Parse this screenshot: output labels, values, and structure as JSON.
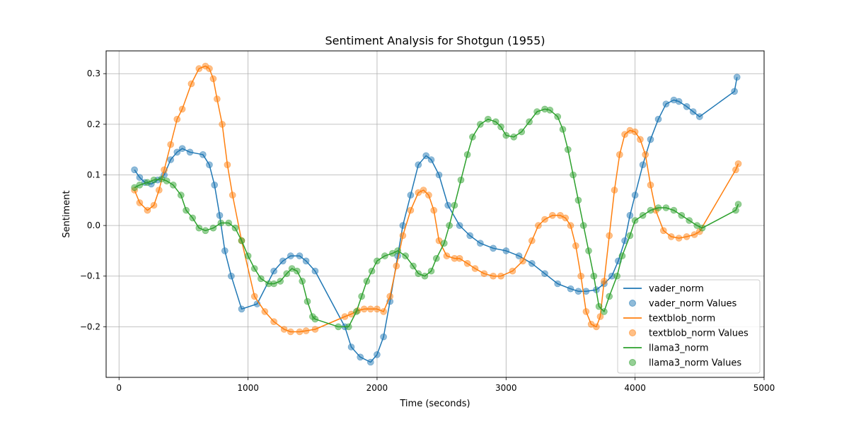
{
  "chart_data": {
    "type": "line",
    "title": "Sentiment Analysis for Shotgun (1955)",
    "xlabel": "Time (seconds)",
    "ylabel": "Sentiment",
    "xlim": [
      -100,
      5000
    ],
    "ylim": [
      -0.3,
      0.345
    ],
    "xticks": [
      0,
      1000,
      2000,
      3000,
      4000,
      5000
    ],
    "yticks": [
      -0.2,
      -0.1,
      0.0,
      0.1,
      0.2,
      0.3
    ],
    "xtick_labels": [
      "0",
      "1000",
      "2000",
      "3000",
      "4000",
      "5000"
    ],
    "ytick_labels": [
      "−0.2",
      "−0.1",
      "0.0",
      "0.1",
      "0.2",
      "0.3"
    ],
    "grid": true,
    "legend_position": "lower-right",
    "series": [
      {
        "name": "vader_norm",
        "values_label": "vader_norm Values",
        "color": "#1f77b4",
        "x": [
          120,
          160,
          200,
          250,
          300,
          350,
          400,
          450,
          490,
          550,
          650,
          700,
          740,
          780,
          820,
          870,
          950,
          1070,
          1200,
          1270,
          1330,
          1400,
          1450,
          1520,
          1750,
          1800,
          1870,
          1950,
          2000,
          2050,
          2100,
          2160,
          2200,
          2260,
          2320,
          2380,
          2420,
          2480,
          2550,
          2640,
          2720,
          2800,
          2900,
          3000,
          3100,
          3200,
          3300,
          3400,
          3500,
          3560,
          3620,
          3700,
          3760,
          3820,
          3870,
          3920,
          3960,
          4000,
          4060,
          4120,
          4180,
          4240,
          4300,
          4340,
          4400,
          4450,
          4500,
          4770,
          4790
        ],
        "y": [
          0.11,
          0.095,
          0.085,
          0.082,
          0.09,
          0.1,
          0.13,
          0.145,
          0.152,
          0.145,
          0.14,
          0.12,
          0.08,
          0.02,
          -0.05,
          -0.1,
          -0.165,
          -0.155,
          -0.09,
          -0.07,
          -0.06,
          -0.06,
          -0.07,
          -0.09,
          -0.2,
          -0.24,
          -0.26,
          -0.27,
          -0.255,
          -0.22,
          -0.15,
          -0.06,
          0.0,
          0.06,
          0.12,
          0.138,
          0.13,
          0.1,
          0.04,
          0.0,
          -0.02,
          -0.035,
          -0.045,
          -0.05,
          -0.06,
          -0.075,
          -0.095,
          -0.115,
          -0.125,
          -0.13,
          -0.13,
          -0.127,
          -0.115,
          -0.1,
          -0.07,
          -0.03,
          0.02,
          0.06,
          0.12,
          0.17,
          0.21,
          0.24,
          0.248,
          0.245,
          0.235,
          0.225,
          0.215,
          0.265,
          0.293
        ]
      },
      {
        "name": "textblob_norm",
        "values_label": "textblob_norm Values",
        "color": "#ff7f0e",
        "x": [
          120,
          160,
          220,
          270,
          310,
          350,
          400,
          450,
          490,
          560,
          620,
          670,
          700,
          730,
          760,
          800,
          840,
          880,
          950,
          1050,
          1130,
          1200,
          1280,
          1330,
          1400,
          1450,
          1520,
          1750,
          1800,
          1850,
          1900,
          1950,
          2000,
          2050,
          2100,
          2150,
          2200,
          2260,
          2320,
          2360,
          2400,
          2440,
          2480,
          2540,
          2600,
          2640,
          2700,
          2760,
          2830,
          2900,
          2960,
          3050,
          3130,
          3200,
          3250,
          3300,
          3360,
          3420,
          3460,
          3500,
          3540,
          3580,
          3620,
          3660,
          3700,
          3730,
          3760,
          3800,
          3840,
          3880,
          3920,
          3960,
          4000,
          4040,
          4080,
          4120,
          4160,
          4220,
          4280,
          4340,
          4400,
          4460,
          4500,
          4780,
          4800
        ],
        "y": [
          0.07,
          0.045,
          0.03,
          0.04,
          0.07,
          0.11,
          0.16,
          0.21,
          0.23,
          0.28,
          0.31,
          0.315,
          0.31,
          0.29,
          0.25,
          0.2,
          0.12,
          0.06,
          -0.03,
          -0.14,
          -0.17,
          -0.19,
          -0.205,
          -0.21,
          -0.21,
          -0.208,
          -0.205,
          -0.18,
          -0.175,
          -0.168,
          -0.165,
          -0.165,
          -0.165,
          -0.17,
          -0.14,
          -0.08,
          -0.02,
          0.03,
          0.065,
          0.07,
          0.06,
          0.03,
          -0.03,
          -0.06,
          -0.065,
          -0.065,
          -0.075,
          -0.085,
          -0.095,
          -0.1,
          -0.1,
          -0.09,
          -0.07,
          -0.03,
          0.0,
          0.012,
          0.02,
          0.02,
          0.015,
          0.0,
          -0.04,
          -0.1,
          -0.17,
          -0.195,
          -0.2,
          -0.18,
          -0.11,
          -0.02,
          0.07,
          0.14,
          0.18,
          0.188,
          0.185,
          0.17,
          0.14,
          0.08,
          0.03,
          -0.01,
          -0.022,
          -0.025,
          -0.022,
          -0.018,
          -0.012,
          0.11,
          0.122
        ]
      },
      {
        "name": "llama3_norm",
        "values_label": "llama3_norm Values",
        "color": "#2ca02c",
        "x": [
          120,
          160,
          220,
          270,
          330,
          370,
          420,
          480,
          520,
          570,
          620,
          670,
          730,
          790,
          850,
          900,
          950,
          1000,
          1050,
          1100,
          1160,
          1200,
          1250,
          1300,
          1340,
          1380,
          1420,
          1460,
          1500,
          1520,
          1700,
          1780,
          1840,
          1880,
          1920,
          1960,
          2000,
          2060,
          2120,
          2160,
          2220,
          2280,
          2320,
          2370,
          2420,
          2460,
          2520,
          2560,
          2600,
          2650,
          2700,
          2740,
          2800,
          2860,
          2920,
          2960,
          3000,
          3060,
          3120,
          3180,
          3240,
          3300,
          3340,
          3400,
          3440,
          3480,
          3520,
          3560,
          3600,
          3640,
          3680,
          3720,
          3760,
          3800,
          3860,
          3900,
          3960,
          4000,
          4060,
          4120,
          4180,
          4240,
          4300,
          4360,
          4420,
          4480,
          4520,
          4780,
          4800
        ],
        "y": [
          0.075,
          0.08,
          0.085,
          0.09,
          0.092,
          0.088,
          0.08,
          0.06,
          0.03,
          0.015,
          -0.005,
          -0.01,
          -0.005,
          0.005,
          0.005,
          -0.005,
          -0.03,
          -0.06,
          -0.085,
          -0.105,
          -0.115,
          -0.115,
          -0.11,
          -0.095,
          -0.085,
          -0.09,
          -0.11,
          -0.15,
          -0.18,
          -0.185,
          -0.2,
          -0.2,
          -0.17,
          -0.14,
          -0.11,
          -0.09,
          -0.07,
          -0.06,
          -0.055,
          -0.05,
          -0.06,
          -0.08,
          -0.095,
          -0.1,
          -0.09,
          -0.065,
          -0.035,
          0.0,
          0.04,
          0.09,
          0.14,
          0.175,
          0.2,
          0.21,
          0.205,
          0.195,
          0.178,
          0.175,
          0.185,
          0.205,
          0.225,
          0.23,
          0.228,
          0.215,
          0.19,
          0.15,
          0.1,
          0.05,
          0.0,
          -0.05,
          -0.1,
          -0.16,
          -0.17,
          -0.14,
          -0.1,
          -0.06,
          -0.02,
          0.01,
          0.02,
          0.03,
          0.035,
          0.035,
          0.03,
          0.02,
          0.01,
          0.0,
          -0.005,
          0.03,
          0.042
        ]
      }
    ]
  }
}
